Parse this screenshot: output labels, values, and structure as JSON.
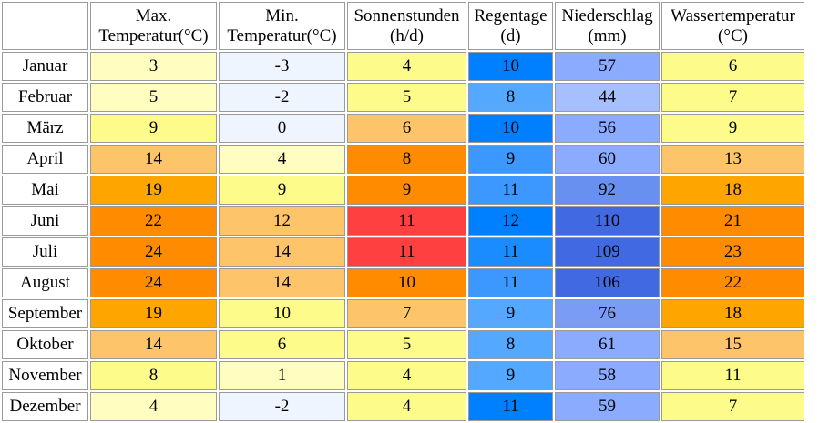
{
  "headers": [
    {
      "line1": "Max.",
      "line2": "Temperatur(°C)"
    },
    {
      "line1": "Min.",
      "line2": "Temperatur(°C)"
    },
    {
      "line1": "Sonnenstunden",
      "line2": "(h/d)"
    },
    {
      "line1": "Regentage",
      "line2": "(d)"
    },
    {
      "line1": "Niederschlag",
      "line2": "(mm)"
    },
    {
      "line1": "Wassertemperatur",
      "line2": "(°C)"
    }
  ],
  "rows": [
    {
      "month": "Januar",
      "cells": [
        {
          "v": "3",
          "bg": "#fffdc0"
        },
        {
          "v": "-3",
          "bg": "#eef5ff"
        },
        {
          "v": "4",
          "bg": "#fdfb8a"
        },
        {
          "v": "10",
          "bg": "#0080ff"
        },
        {
          "v": "57",
          "bg": "#8aabff"
        },
        {
          "v": "6",
          "bg": "#fdfb8a"
        }
      ]
    },
    {
      "month": "Februar",
      "cells": [
        {
          "v": "5",
          "bg": "#fffdc0"
        },
        {
          "v": "-2",
          "bg": "#eef5ff"
        },
        {
          "v": "5",
          "bg": "#fdfb8a"
        },
        {
          "v": "8",
          "bg": "#54a8ff"
        },
        {
          "v": "44",
          "bg": "#a6c0ff"
        },
        {
          "v": "7",
          "bg": "#fdfb8a"
        }
      ]
    },
    {
      "month": "März",
      "cells": [
        {
          "v": "9",
          "bg": "#fdfb8a"
        },
        {
          "v": "0",
          "bg": "#eef5ff"
        },
        {
          "v": "6",
          "bg": "#fec46a"
        },
        {
          "v": "10",
          "bg": "#0080ff"
        },
        {
          "v": "56",
          "bg": "#8aabff"
        },
        {
          "v": "9",
          "bg": "#fdfb8a"
        }
      ]
    },
    {
      "month": "April",
      "cells": [
        {
          "v": "14",
          "bg": "#fec46a"
        },
        {
          "v": "4",
          "bg": "#fffdc0"
        },
        {
          "v": "8",
          "bg": "#ff8c00"
        },
        {
          "v": "9",
          "bg": "#3c98ff"
        },
        {
          "v": "60",
          "bg": "#8aabff"
        },
        {
          "v": "13",
          "bg": "#fec46a"
        }
      ]
    },
    {
      "month": "Mai",
      "cells": [
        {
          "v": "19",
          "bg": "#ffa500"
        },
        {
          "v": "9",
          "bg": "#fdfb8a"
        },
        {
          "v": "9",
          "bg": "#ff8c00"
        },
        {
          "v": "11",
          "bg": "#3c98ff"
        },
        {
          "v": "92",
          "bg": "#6890f0"
        },
        {
          "v": "18",
          "bg": "#ffa500"
        }
      ]
    },
    {
      "month": "Juni",
      "cells": [
        {
          "v": "22",
          "bg": "#ff8c00"
        },
        {
          "v": "12",
          "bg": "#fec46a"
        },
        {
          "v": "11",
          "bg": "#ff4040"
        },
        {
          "v": "12",
          "bg": "#0080ff"
        },
        {
          "v": "110",
          "bg": "#4169e1"
        },
        {
          "v": "21",
          "bg": "#ff8c00"
        }
      ]
    },
    {
      "month": "Juli",
      "cells": [
        {
          "v": "24",
          "bg": "#ff8c00"
        },
        {
          "v": "14",
          "bg": "#fec46a"
        },
        {
          "v": "11",
          "bg": "#ff4040"
        },
        {
          "v": "11",
          "bg": "#1a8cff"
        },
        {
          "v": "109",
          "bg": "#4169e1"
        },
        {
          "v": "23",
          "bg": "#ff8c00"
        }
      ]
    },
    {
      "month": "August",
      "cells": [
        {
          "v": "24",
          "bg": "#ff8c00"
        },
        {
          "v": "14",
          "bg": "#fec46a"
        },
        {
          "v": "10",
          "bg": "#ff8c00"
        },
        {
          "v": "11",
          "bg": "#3c98ff"
        },
        {
          "v": "106",
          "bg": "#4169e1"
        },
        {
          "v": "22",
          "bg": "#ff8c00"
        }
      ]
    },
    {
      "month": "September",
      "cells": [
        {
          "v": "19",
          "bg": "#ffa500"
        },
        {
          "v": "10",
          "bg": "#fdfb8a"
        },
        {
          "v": "7",
          "bg": "#fec46a"
        },
        {
          "v": "9",
          "bg": "#54a8ff"
        },
        {
          "v": "76",
          "bg": "#7b9cf5"
        },
        {
          "v": "18",
          "bg": "#ffa500"
        }
      ]
    },
    {
      "month": "Oktober",
      "cells": [
        {
          "v": "14",
          "bg": "#fec46a"
        },
        {
          "v": "6",
          "bg": "#fdfb8a"
        },
        {
          "v": "5",
          "bg": "#fdfb8a"
        },
        {
          "v": "8",
          "bg": "#54a8ff"
        },
        {
          "v": "61",
          "bg": "#8aabff"
        },
        {
          "v": "15",
          "bg": "#fec46a"
        }
      ]
    },
    {
      "month": "November",
      "cells": [
        {
          "v": "8",
          "bg": "#fdfb8a"
        },
        {
          "v": "1",
          "bg": "#fffdc0"
        },
        {
          "v": "4",
          "bg": "#fdfb8a"
        },
        {
          "v": "9",
          "bg": "#54a8ff"
        },
        {
          "v": "58",
          "bg": "#8aabff"
        },
        {
          "v": "11",
          "bg": "#fdfb8a"
        }
      ]
    },
    {
      "month": "Dezember",
      "cells": [
        {
          "v": "4",
          "bg": "#fffdc0"
        },
        {
          "v": "-2",
          "bg": "#eef5ff"
        },
        {
          "v": "4",
          "bg": "#fdfb8a"
        },
        {
          "v": "11",
          "bg": "#0080ff"
        },
        {
          "v": "59",
          "bg": "#8aabff"
        },
        {
          "v": "7",
          "bg": "#fdfb8a"
        }
      ]
    }
  ]
}
